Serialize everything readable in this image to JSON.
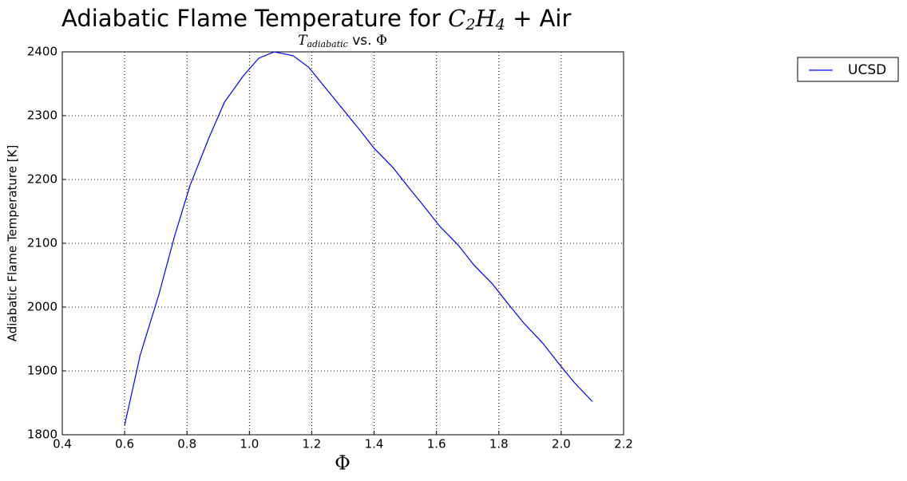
{
  "chart_data": {
    "type": "line",
    "title": [
      "Adiabatic Flame Temperature for ",
      "C",
      "2",
      "H",
      "4",
      " + Air"
    ],
    "subtitle": [
      "T",
      "adiabatic",
      " vs. ",
      "Φ"
    ],
    "x_label": "Φ",
    "y_label": "Adiabatic Flame Temperature [K]",
    "x": [
      0.6,
      0.65,
      0.71,
      0.76,
      0.81,
      0.87,
      0.92,
      0.98,
      1.03,
      1.08,
      1.14,
      1.19,
      1.24,
      1.3,
      1.35,
      1.4,
      1.46,
      1.51,
      1.56,
      1.61,
      1.67,
      1.72,
      1.78,
      1.83,
      1.88,
      1.94,
      1.99,
      2.04,
      2.1
    ],
    "series": [
      {
        "name": "UCSD",
        "color": "#0000ff",
        "values": [
          1815,
          1925,
          2020,
          2111,
          2191,
          2265,
          2321,
          2362,
          2390,
          2400,
          2394,
          2376,
          2346,
          2310,
          2280,
          2249,
          2219,
          2188,
          2158,
          2127,
          2097,
          2066,
          2036,
          2005,
          1975,
          1944,
          1913,
          1883,
          1852
        ]
      }
    ],
    "xlim": [
      0.4,
      2.2
    ],
    "xticks": [
      0.4,
      0.6,
      0.8,
      {
        "value": 1,
        "label": "1.0"
      },
      1.2,
      1.4,
      1.6,
      1.8,
      {
        "value": 2,
        "label": "2.0"
      },
      2.2
    ],
    "ylim": [
      1800,
      2400
    ],
    "yticks": [
      1800,
      1900,
      2000,
      2100,
      2200,
      2300,
      2400
    ],
    "grid": true,
    "legend": "outside-upper-right"
  }
}
